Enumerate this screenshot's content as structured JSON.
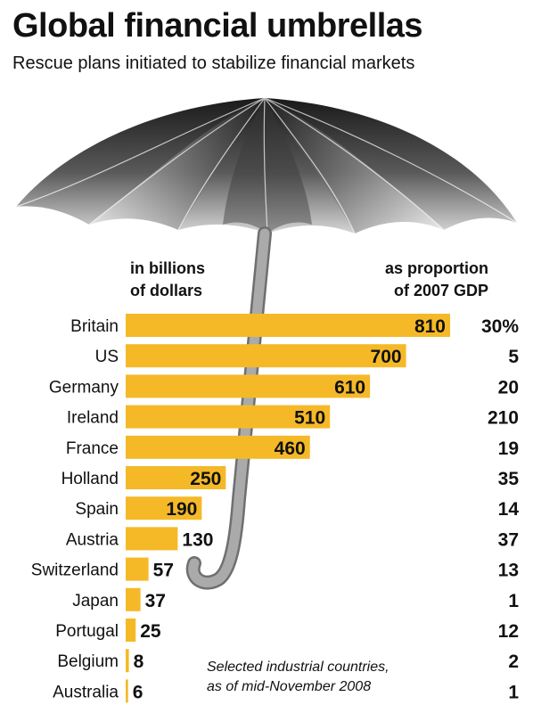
{
  "header": {
    "title": "Global financial umbrellas",
    "subtitle": "Rescue plans initiated to stabilize financial markets"
  },
  "column_headers": {
    "left_line1": "in billions",
    "left_line2": "of dollars",
    "right_line1": "as proportion",
    "right_line2": "of 2007 GDP"
  },
  "note": {
    "line1": "Selected industrial countries,",
    "line2": "as of mid-November 2008"
  },
  "colors": {
    "bar": "#f5b928",
    "umbrella_dark": "#1e1e1e",
    "umbrella_light": "#cfcfcf",
    "shaft": "#9a9a9a"
  },
  "chart_data": {
    "type": "bar",
    "orientation": "horizontal",
    "categories": [
      "Britain",
      "US",
      "Germany",
      "Ireland",
      "France",
      "Holland",
      "Spain",
      "Austria",
      "Switzerland",
      "Japan",
      "Portugal",
      "Belgium",
      "Australia"
    ],
    "series": [
      {
        "name": "in billions of dollars",
        "values": [
          810,
          700,
          610,
          510,
          460,
          250,
          190,
          130,
          57,
          37,
          25,
          8,
          6
        ]
      },
      {
        "name": "as proportion of 2007 GDP",
        "values": [
          30,
          5,
          20,
          210,
          19,
          35,
          14,
          37,
          13,
          1,
          12,
          2,
          1
        ],
        "labels": [
          "30%",
          "5",
          "20",
          "210",
          "19",
          "35",
          "14",
          "37",
          "13",
          "1",
          "12",
          "2",
          "1"
        ]
      }
    ],
    "xlim": [
      0,
      810
    ]
  }
}
